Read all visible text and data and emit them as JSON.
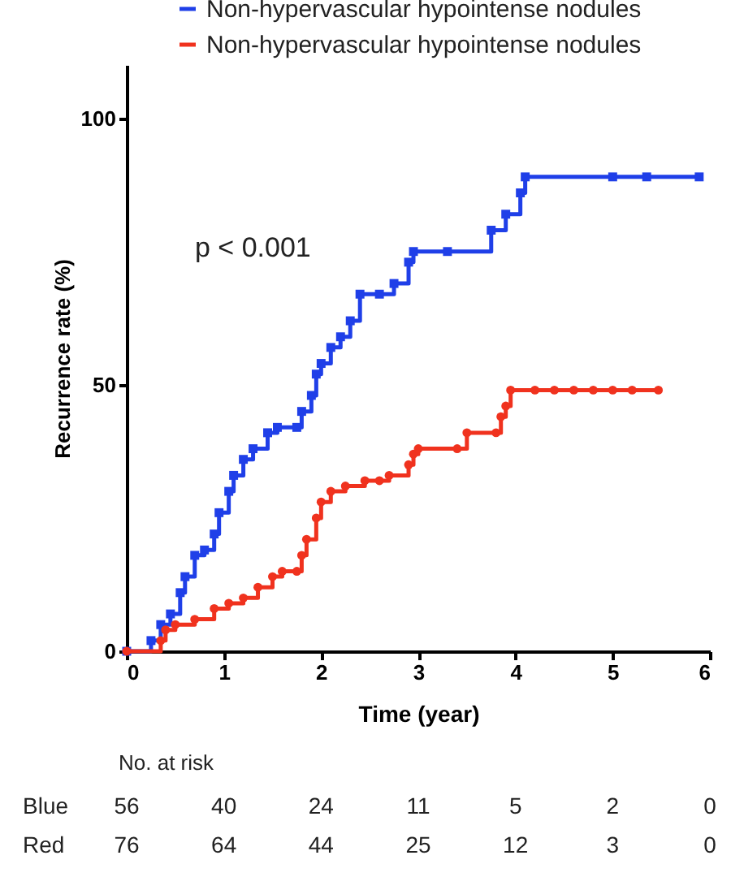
{
  "chart_data": {
    "type": "step",
    "xlabel": "Time (year)",
    "ylabel": "Recurrence rate (%)",
    "xlim": [
      0,
      6
    ],
    "xticks": [
      0,
      1,
      2,
      3,
      4,
      5,
      6
    ],
    "ylim": [
      0,
      110
    ],
    "yticks": [
      0,
      50,
      100
    ],
    "grid": false,
    "legend": "top",
    "annotations": [
      "p < 0.001",
      "No. at risk",
      "Blue 56 40 24 11 5 2 0",
      "Red 76 64 44 25 12 3 0"
    ],
    "series": [
      {
        "name": "Non-hypervascular hypointense nodules",
        "color": "#1f3fe8",
        "marker": "square",
        "x": [
          0,
          0.25,
          0.35,
          0.45,
          0.55,
          0.6,
          0.7,
          0.8,
          0.9,
          0.95,
          1.05,
          1.1,
          1.2,
          1.3,
          1.45,
          1.55,
          1.75,
          1.8,
          1.9,
          1.95,
          2.0,
          2.1,
          2.2,
          2.3,
          2.4,
          2.6,
          2.75,
          2.9,
          2.95,
          3.3,
          3.75,
          3.9,
          4.05,
          4.1,
          5.0,
          5.35,
          5.89
        ],
        "values": [
          0,
          2,
          5,
          7,
          11,
          14,
          18,
          19,
          22,
          26,
          30,
          33,
          36,
          38,
          41,
          42,
          42,
          45,
          48,
          52,
          54,
          57,
          59,
          62,
          67,
          67,
          69,
          73,
          75,
          75,
          79,
          82,
          86,
          89,
          89,
          89,
          89
        ]
      },
      {
        "name": "Non-hypervascular hypointense nodules",
        "color": "#f0321e",
        "marker": "circle",
        "x": [
          0,
          0.35,
          0.4,
          0.5,
          0.7,
          0.9,
          1.05,
          1.2,
          1.35,
          1.5,
          1.6,
          1.75,
          1.8,
          1.85,
          1.95,
          2.0,
          2.1,
          2.25,
          2.45,
          2.6,
          2.7,
          2.9,
          2.95,
          3.0,
          3.4,
          3.5,
          3.8,
          3.85,
          3.9,
          3.95,
          4.2,
          4.4,
          4.6,
          4.8,
          5.0,
          5.2,
          5.47
        ],
        "values": [
          0,
          2,
          4,
          5,
          6,
          8,
          9,
          10,
          12,
          14,
          15,
          15,
          18,
          21,
          25,
          28,
          30,
          31,
          32,
          32,
          33,
          35,
          37,
          38,
          38,
          41,
          41,
          44,
          46,
          49,
          49,
          49,
          49,
          49,
          49,
          49,
          49
        ]
      }
    ]
  }
}
